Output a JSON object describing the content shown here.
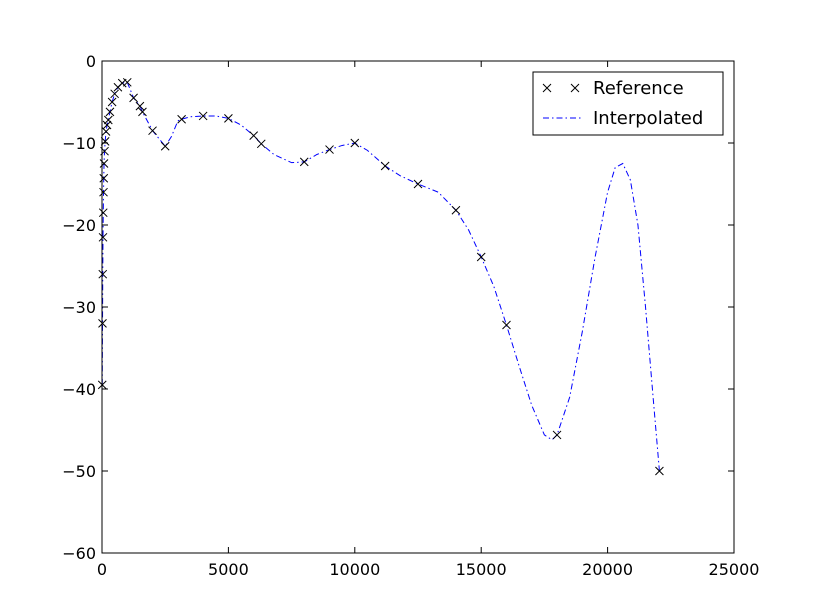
{
  "chart_data": {
    "type": "line",
    "title": "",
    "xlabel": "",
    "ylabel": "",
    "xlim": [
      0,
      25000
    ],
    "ylim": [
      -60,
      0
    ],
    "xticks": [
      0,
      5000,
      10000,
      15000,
      20000,
      25000
    ],
    "yticks": [
      0,
      -10,
      -20,
      -30,
      -40,
      -50,
      -60
    ],
    "xtick_labels": [
      "0",
      "5000",
      "10000",
      "15000",
      "20000",
      "25000"
    ],
    "ytick_labels": [
      "0",
      "−10",
      "−20",
      "−30",
      "−40",
      "−50",
      "−60"
    ],
    "grid": false,
    "legend": {
      "position": "top-right"
    },
    "series": [
      {
        "name": "Reference",
        "style": "markers",
        "marker": "x",
        "color": "#000000",
        "points": [
          [
            10,
            -39.5
          ],
          [
            20,
            -32
          ],
          [
            30,
            -26
          ],
          [
            40,
            -21.5
          ],
          [
            50,
            -18.5
          ],
          [
            60,
            -16
          ],
          [
            70,
            -14.3
          ],
          [
            80,
            -12.5
          ],
          [
            100,
            -11
          ],
          [
            125,
            -9.8
          ],
          [
            160,
            -8.6
          ],
          [
            200,
            -7.8
          ],
          [
            250,
            -7.2
          ],
          [
            315,
            -6.2
          ],
          [
            400,
            -5
          ],
          [
            500,
            -4
          ],
          [
            630,
            -3.2
          ],
          [
            800,
            -2.7
          ],
          [
            1000,
            -2.6
          ],
          [
            1250,
            -4.5
          ],
          [
            1500,
            -5.5
          ],
          [
            1600,
            -6.2
          ],
          [
            2000,
            -8.5
          ],
          [
            2500,
            -10.4
          ],
          [
            3150,
            -7.1
          ],
          [
            4000,
            -6.7
          ],
          [
            5000,
            -7
          ],
          [
            6000,
            -9.1
          ],
          [
            6300,
            -10.1
          ],
          [
            8000,
            -12.3
          ],
          [
            9000,
            -10.8
          ],
          [
            10000,
            -10
          ],
          [
            11200,
            -12.8
          ],
          [
            12500,
            -15
          ],
          [
            14000,
            -18.2
          ],
          [
            15000,
            -23.9
          ],
          [
            16000,
            -32.2
          ],
          [
            18000,
            -45.6
          ],
          [
            22050,
            -50
          ]
        ]
      },
      {
        "name": "Interpolated",
        "style": "dashdot",
        "color": "#0000ff",
        "points": [
          [
            10,
            -39.5
          ],
          [
            20,
            -32
          ],
          [
            30,
            -26
          ],
          [
            40,
            -21.5
          ],
          [
            50,
            -18.5
          ],
          [
            60,
            -16
          ],
          [
            70,
            -14.3
          ],
          [
            80,
            -12.5
          ],
          [
            100,
            -11
          ],
          [
            125,
            -9.8
          ],
          [
            160,
            -8.6
          ],
          [
            200,
            -7.8
          ],
          [
            250,
            -7.2
          ],
          [
            315,
            -6.2
          ],
          [
            400,
            -5
          ],
          [
            500,
            -4
          ],
          [
            630,
            -3.2
          ],
          [
            800,
            -2.7
          ],
          [
            1000,
            -2.6
          ],
          [
            1250,
            -4.5
          ],
          [
            1500,
            -5.5
          ],
          [
            1600,
            -6.2
          ],
          [
            2000,
            -8.5
          ],
          [
            2500,
            -10.4
          ],
          [
            2750,
            -9.2
          ],
          [
            3000,
            -7.3
          ],
          [
            3150,
            -7.1
          ],
          [
            3500,
            -6.8
          ],
          [
            4000,
            -6.7
          ],
          [
            4500,
            -6.7
          ],
          [
            5000,
            -7
          ],
          [
            5500,
            -7.8
          ],
          [
            6000,
            -9.1
          ],
          [
            6300,
            -10.1
          ],
          [
            6800,
            -11.4
          ],
          [
            7500,
            -12.4
          ],
          [
            8000,
            -12.3
          ],
          [
            8500,
            -11.4
          ],
          [
            9000,
            -10.8
          ],
          [
            9500,
            -10.3
          ],
          [
            10000,
            -10
          ],
          [
            10500,
            -10.9
          ],
          [
            11200,
            -12.8
          ],
          [
            11800,
            -14
          ],
          [
            12500,
            -15
          ],
          [
            13300,
            -16
          ],
          [
            14000,
            -18.2
          ],
          [
            14500,
            -20.6
          ],
          [
            15000,
            -23.9
          ],
          [
            15500,
            -27.5
          ],
          [
            16000,
            -32.2
          ],
          [
            16500,
            -37.2
          ],
          [
            17000,
            -42
          ],
          [
            17500,
            -45.6
          ],
          [
            17800,
            -46.2
          ],
          [
            18000,
            -45.6
          ],
          [
            18500,
            -41
          ],
          [
            19000,
            -33
          ],
          [
            19500,
            -24
          ],
          [
            20000,
            -16
          ],
          [
            20300,
            -13
          ],
          [
            20600,
            -12.5
          ],
          [
            20900,
            -14.5
          ],
          [
            21200,
            -20
          ],
          [
            21500,
            -30
          ],
          [
            21800,
            -41
          ],
          [
            22050,
            -50
          ]
        ]
      }
    ]
  }
}
